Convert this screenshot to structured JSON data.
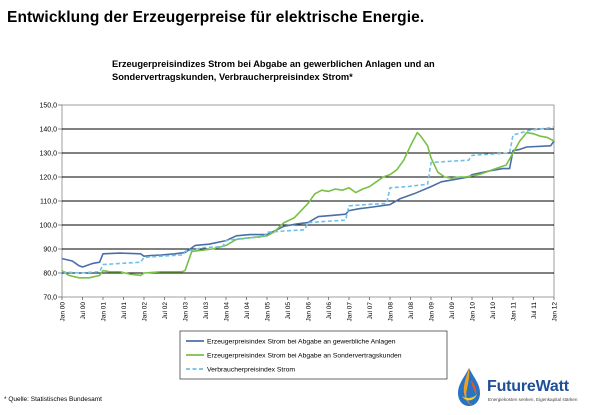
{
  "slide_title": "Entwicklung der Erzeugerpreise für elektrische Energie.",
  "source_note": "* Quelle: Statistisches Bundesamt",
  "logo": {
    "name": "FutureWatt",
    "tagline": "Energiekosten senken, Eigenkapital stärken"
  },
  "chart_data": {
    "type": "line",
    "title_lines": [
      "Erzeugerpreisindizes Strom bei Abgabe an gewerblichen Anlagen und an",
      "Sondervertragskunden, Verbraucherpreisindex Strom*"
    ],
    "xlabel": "",
    "ylabel": "",
    "ylim": [
      70,
      150
    ],
    "yticks": [
      "150,0",
      "140,0",
      "130,0",
      "120,0",
      "110,0",
      "100,0",
      "90,0",
      "80,0",
      "70,0"
    ],
    "xlim": [
      "2000-01",
      "2012-01"
    ],
    "xticks": [
      "Jan 00",
      "Jul 00",
      "Jan 01",
      "Jul 01",
      "Jan 02",
      "Jul 02",
      "Jan 03",
      "Jul 03",
      "Jan 04",
      "Jul 04",
      "Jan 05",
      "Jul 05",
      "Jan 06",
      "Jul 06",
      "Jan 07",
      "Jul 07",
      "Jan 08",
      "Jul 08",
      "Jan 09",
      "Jul 09",
      "Jan 10",
      "Jul 10",
      "Jan 11",
      "Jul 11",
      "Jan 12"
    ],
    "grid": "horizontal",
    "legend_position": "bottom",
    "series": [
      {
        "name": "Erzeugerpreisindex Strom bei Abgabe an gewerbliche Anlagen",
        "color": "#4a6fa8",
        "style": "solid",
        "points": [
          [
            "2000-01",
            86
          ],
          [
            "2000-04",
            85
          ],
          [
            "2000-06",
            83
          ],
          [
            "2000-07",
            82.5
          ],
          [
            "2000-10",
            84
          ],
          [
            "2000-12",
            84.5
          ],
          [
            "2001-01",
            88
          ],
          [
            "2001-06",
            88.3
          ],
          [
            "2001-12",
            88
          ],
          [
            "2002-01",
            87
          ],
          [
            "2002-03",
            87.3
          ],
          [
            "2002-06",
            87.5
          ],
          [
            "2002-10",
            88
          ],
          [
            "2003-01",
            88.5
          ],
          [
            "2003-04",
            91.5
          ],
          [
            "2003-08",
            92
          ],
          [
            "2004-01",
            93.5
          ],
          [
            "2004-04",
            95.5
          ],
          [
            "2004-08",
            96
          ],
          [
            "2005-01",
            96
          ],
          [
            "2005-06",
            99.5
          ],
          [
            "2005-10",
            100.5
          ],
          [
            "2006-01",
            101
          ],
          [
            "2006-04",
            103.5
          ],
          [
            "2006-08",
            104
          ],
          [
            "2006-12",
            104.5
          ],
          [
            "2007-01",
            106
          ],
          [
            "2007-04",
            106.8
          ],
          [
            "2007-08",
            107.5
          ],
          [
            "2008-01",
            108.5
          ],
          [
            "2008-04",
            111
          ],
          [
            "2008-08",
            113
          ],
          [
            "2009-01",
            116
          ],
          [
            "2009-04",
            118
          ],
          [
            "2009-08",
            119
          ],
          [
            "2009-12",
            120
          ],
          [
            "2010-01",
            121
          ],
          [
            "2010-06",
            122.5
          ],
          [
            "2010-10",
            123.5
          ],
          [
            "2010-12",
            123.5
          ],
          [
            "2011-01",
            131
          ],
          [
            "2011-03",
            131.5
          ],
          [
            "2011-05",
            132.5
          ],
          [
            "2011-12",
            133
          ],
          [
            "2012-01",
            135
          ]
        ]
      },
      {
        "name": "Erzeugerpreisindex Strom bei Abgabe an Sondervertragskunden",
        "color": "#77c044",
        "style": "solid",
        "points": [
          [
            "2000-01",
            81
          ],
          [
            "2000-03",
            79
          ],
          [
            "2000-06",
            78
          ],
          [
            "2000-09",
            78
          ],
          [
            "2000-12",
            79
          ],
          [
            "2001-01",
            81
          ],
          [
            "2001-03",
            80.5
          ],
          [
            "2001-06",
            80.5
          ],
          [
            "2001-09",
            79.5
          ],
          [
            "2001-12",
            79
          ],
          [
            "2002-01",
            80
          ],
          [
            "2002-06",
            80.5
          ],
          [
            "2002-12",
            80.5
          ],
          [
            "2003-01",
            81
          ],
          [
            "2003-03",
            89
          ],
          [
            "2003-06",
            89.5
          ],
          [
            "2003-09",
            90
          ],
          [
            "2004-01",
            91.5
          ],
          [
            "2004-04",
            94
          ],
          [
            "2004-07",
            94.5
          ],
          [
            "2004-10",
            95
          ],
          [
            "2005-01",
            95.5
          ],
          [
            "2005-03",
            97
          ],
          [
            "2005-06",
            101
          ],
          [
            "2005-09",
            103
          ],
          [
            "2005-11",
            106
          ],
          [
            "2006-01",
            109
          ],
          [
            "2006-03",
            113
          ],
          [
            "2006-05",
            114.5
          ],
          [
            "2006-07",
            114
          ],
          [
            "2006-09",
            115
          ],
          [
            "2006-11",
            114.5
          ],
          [
            "2007-01",
            115.5
          ],
          [
            "2007-03",
            113.5
          ],
          [
            "2007-05",
            115
          ],
          [
            "2007-07",
            116
          ],
          [
            "2007-09",
            118
          ],
          [
            "2007-11",
            120
          ],
          [
            "2008-01",
            121
          ],
          [
            "2008-03",
            123
          ],
          [
            "2008-05",
            127
          ],
          [
            "2008-07",
            133
          ],
          [
            "2008-09",
            138.5
          ],
          [
            "2008-10",
            137
          ],
          [
            "2008-12",
            133
          ],
          [
            "2009-01",
            128
          ],
          [
            "2009-03",
            122
          ],
          [
            "2009-05",
            120
          ],
          [
            "2009-07",
            119.5
          ],
          [
            "2009-09",
            120
          ],
          [
            "2009-11",
            120
          ],
          [
            "2010-01",
            120.5
          ],
          [
            "2010-03",
            121
          ],
          [
            "2010-05",
            122
          ],
          [
            "2010-07",
            123
          ],
          [
            "2010-09",
            124
          ],
          [
            "2010-11",
            125
          ],
          [
            "2011-01",
            130
          ],
          [
            "2011-03",
            135
          ],
          [
            "2011-05",
            138.5
          ],
          [
            "2011-07",
            138
          ],
          [
            "2011-09",
            137
          ],
          [
            "2011-11",
            136.5
          ],
          [
            "2012-01",
            135
          ]
        ]
      },
      {
        "name": "Verbraucherpreisindex Strom",
        "color": "#6ec0e8",
        "style": "dashed",
        "points": [
          [
            "2000-01",
            80.5
          ],
          [
            "2000-06",
            80
          ],
          [
            "2000-12",
            80.5
          ],
          [
            "2001-01",
            83.5
          ],
          [
            "2001-06",
            84
          ],
          [
            "2001-12",
            84.5
          ],
          [
            "2002-01",
            86.5
          ],
          [
            "2002-06",
            87
          ],
          [
            "2002-12",
            87.5
          ],
          [
            "2003-01",
            89
          ],
          [
            "2003-06",
            90.5
          ],
          [
            "2003-12",
            91
          ],
          [
            "2004-01",
            93.5
          ],
          [
            "2004-06",
            94.5
          ],
          [
            "2004-12",
            95
          ],
          [
            "2005-01",
            97
          ],
          [
            "2005-06",
            97.5
          ],
          [
            "2005-12",
            98
          ],
          [
            "2006-01",
            101
          ],
          [
            "2006-06",
            101.5
          ],
          [
            "2006-12",
            102
          ],
          [
            "2007-01",
            108
          ],
          [
            "2007-06",
            108.5
          ],
          [
            "2007-12",
            109
          ],
          [
            "2008-01",
            115.5
          ],
          [
            "2008-06",
            116
          ],
          [
            "2008-12",
            117
          ],
          [
            "2009-01",
            126
          ],
          [
            "2009-06",
            126.5
          ],
          [
            "2009-12",
            127
          ],
          [
            "2010-01",
            129
          ],
          [
            "2010-06",
            129.5
          ],
          [
            "2010-12",
            130
          ],
          [
            "2011-01",
            137.5
          ],
          [
            "2011-06",
            139.5
          ],
          [
            "2011-12",
            140.5
          ],
          [
            "2012-01",
            141
          ]
        ]
      }
    ]
  }
}
